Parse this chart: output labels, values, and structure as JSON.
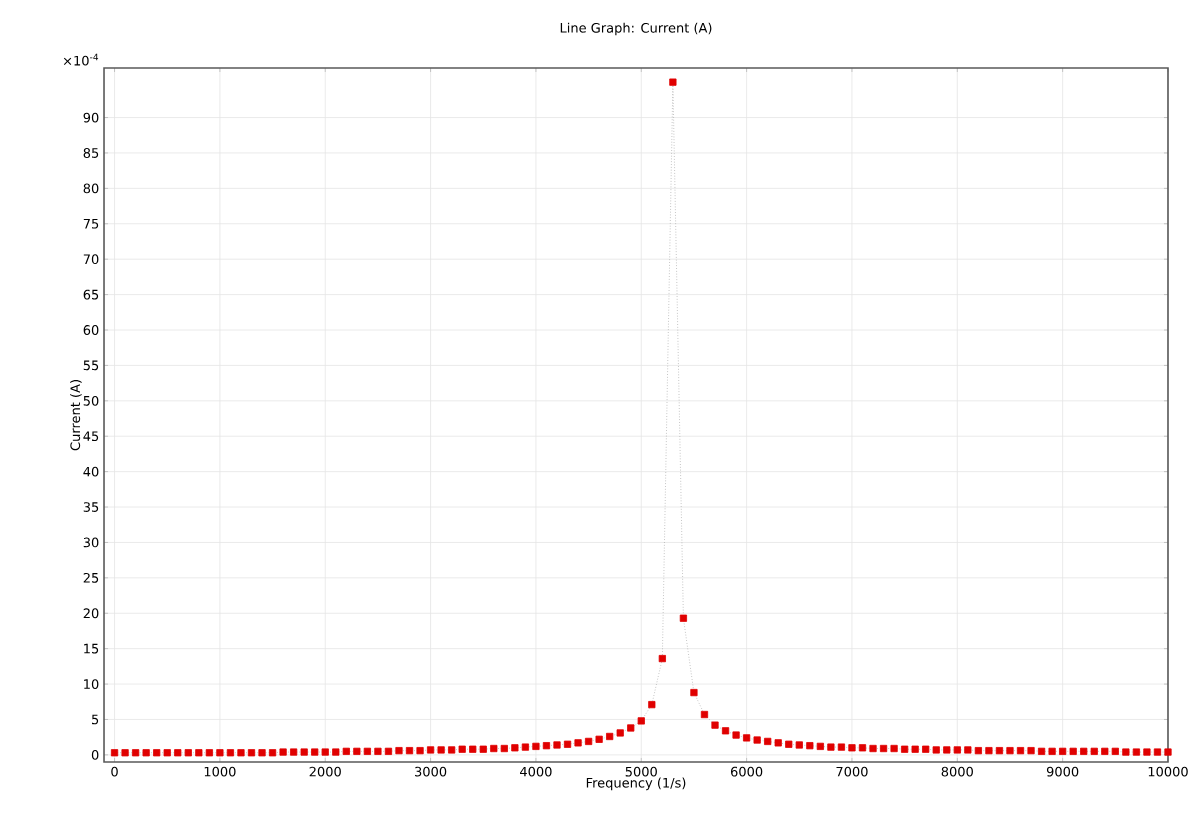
{
  "chart_data": {
    "type": "line",
    "title": "Line Graph: Current (A)",
    "xlabel": "Frequency (1/s)",
    "ylabel": "Current (A)",
    "annotations": [
      "×10$^{-4}$"
    ],
    "x": [
      0,
      100,
      200,
      300,
      400,
      500,
      600,
      700,
      800,
      900,
      1000,
      1100,
      1200,
      1300,
      1400,
      1500,
      1600,
      1700,
      1800,
      1900,
      2000,
      2100,
      2200,
      2300,
      2400,
      2500,
      2600,
      2700,
      2800,
      2900,
      3000,
      3100,
      3200,
      3300,
      3400,
      3500,
      3600,
      3700,
      3800,
      3900,
      4000,
      4100,
      4200,
      4300,
      4400,
      4500,
      4600,
      4700,
      4800,
      4900,
      5000,
      5100,
      5200,
      5300,
      5400,
      5500,
      5600,
      5700,
      5800,
      5900,
      6000,
      6100,
      6200,
      6300,
      6400,
      6500,
      6600,
      6700,
      6800,
      6900,
      7000,
      7100,
      7200,
      7300,
      7400,
      7500,
      7600,
      7700,
      7800,
      7900,
      8000,
      8100,
      8200,
      8300,
      8400,
      8500,
      8600,
      8700,
      8800,
      8900,
      9000,
      9100,
      9200,
      9300,
      9400,
      9500,
      9600,
      9700,
      9800,
      9900,
      10000
    ],
    "series": [
      {
        "color": "#e00000",
        "values": [
          0.3,
          0.3,
          0.3,
          0.3,
          0.3,
          0.3,
          0.3,
          0.3,
          0.3,
          0.3,
          0.3,
          0.3,
          0.3,
          0.3,
          0.3,
          0.3,
          0.4,
          0.4,
          0.4,
          0.4,
          0.4,
          0.4,
          0.5,
          0.5,
          0.5,
          0.5,
          0.5,
          0.6,
          0.6,
          0.6,
          0.7,
          0.7,
          0.7,
          0.8,
          0.8,
          0.8,
          0.9,
          0.9,
          1.0,
          1.1,
          1.2,
          1.3,
          1.4,
          1.5,
          1.7,
          1.9,
          2.2,
          2.6,
          3.1,
          3.8,
          4.8,
          7.1,
          13.6,
          95,
          19.3,
          8.8,
          5.7,
          4.2,
          3.4,
          2.8,
          2.4,
          2.1,
          1.9,
          1.7,
          1.5,
          1.4,
          1.3,
          1.2,
          1.1,
          1.1,
          1.0,
          1.0,
          0.9,
          0.9,
          0.9,
          0.8,
          0.8,
          0.8,
          0.7,
          0.7,
          0.7,
          0.7,
          0.6,
          0.6,
          0.6,
          0.6,
          0.6,
          0.6,
          0.5,
          0.5,
          0.5,
          0.5,
          0.5,
          0.5,
          0.5,
          0.5,
          0.4,
          0.4,
          0.4,
          0.4,
          0.4
        ]
      }
    ],
    "xlim": [
      -100,
      10000
    ],
    "ylim": [
      -1,
      97
    ],
    "xticks": [
      0,
      1000,
      2000,
      3000,
      4000,
      5000,
      6000,
      7000,
      8000,
      9000,
      10000
    ],
    "yticks": [
      0,
      5,
      10,
      15,
      20,
      25,
      30,
      35,
      40,
      45,
      50,
      55,
      60,
      65,
      70,
      75,
      80,
      85,
      90
    ],
    "grid": true,
    "marker": "square",
    "line_style": "dotted"
  }
}
